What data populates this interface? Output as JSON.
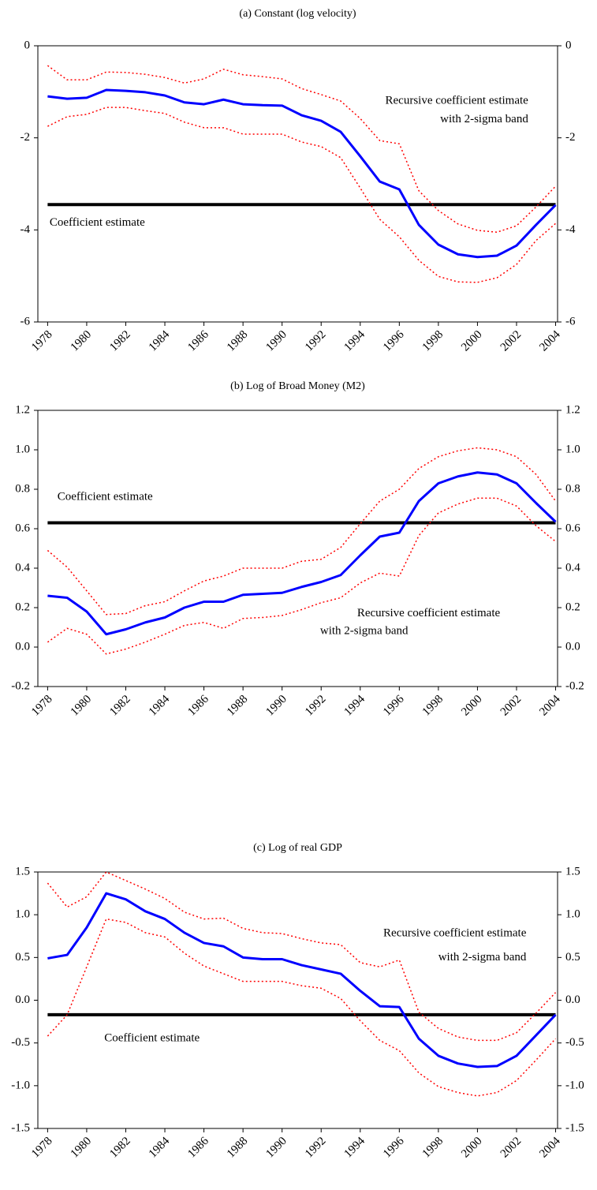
{
  "chart_data": [
    {
      "type": "line",
      "title": "(a) Constant (log velocity)",
      "x": [
        1978,
        1979,
        1980,
        1981,
        1982,
        1983,
        1984,
        1985,
        1986,
        1987,
        1988,
        1989,
        1990,
        1991,
        1992,
        1993,
        1994,
        1995,
        1996,
        1997,
        1998,
        1999,
        2000,
        2001,
        2002,
        2003,
        2004
      ],
      "xlim": [
        1977.5,
        2004.1
      ],
      "xticks": [
        1978,
        1980,
        1982,
        1984,
        1986,
        1988,
        1990,
        1992,
        1994,
        1996,
        1998,
        2000,
        2002,
        2004
      ],
      "ylim": [
        -6,
        0
      ],
      "yticks": [
        -6,
        -4,
        -2,
        0
      ],
      "y2lim": [
        -6,
        0
      ],
      "y2ticks": [
        -6,
        -4,
        -2,
        0
      ],
      "series": [
        {
          "color": "#ff0000",
          "style": "dotted",
          "values": [
            -0.43,
            -0.74,
            -0.74,
            -0.57,
            -0.58,
            -0.62,
            -0.69,
            -0.81,
            -0.72,
            -0.51,
            -0.63,
            -0.67,
            -0.72,
            -0.93,
            -1.06,
            -1.2,
            -1.58,
            -2.06,
            -2.13,
            -3.15,
            -3.58,
            -3.87,
            -4.01,
            -4.05,
            -3.91,
            -3.5,
            -3.05
          ]
        },
        {
          "color": "#0000ff",
          "style": "solid",
          "values": [
            -1.1,
            -1.15,
            -1.13,
            -0.96,
            -0.98,
            -1.01,
            -1.08,
            -1.23,
            -1.27,
            -1.17,
            -1.27,
            -1.29,
            -1.3,
            -1.51,
            -1.63,
            -1.87,
            -2.4,
            -2.95,
            -3.12,
            -3.89,
            -4.32,
            -4.53,
            -4.59,
            -4.56,
            -4.34,
            -3.89,
            -3.46
          ]
        },
        {
          "color": "#ff0000",
          "style": "dotted",
          "values": [
            -1.75,
            -1.54,
            -1.49,
            -1.34,
            -1.34,
            -1.41,
            -1.47,
            -1.66,
            -1.78,
            -1.78,
            -1.92,
            -1.92,
            -1.92,
            -2.09,
            -2.19,
            -2.43,
            -3.09,
            -3.77,
            -4.15,
            -4.66,
            -5.01,
            -5.13,
            -5.14,
            -5.04,
            -4.75,
            -4.23,
            -3.86
          ]
        }
      ],
      "reference_line": {
        "value": -3.45,
        "color": "#000000",
        "label": "Coefficient estimate"
      },
      "band_label": [
        "Recursive coefficient estimate",
        "with 2-sigma band"
      ]
    },
    {
      "type": "line",
      "title": "(b) Log of Broad Money (M2)",
      "x": [
        1978,
        1979,
        1980,
        1981,
        1982,
        1983,
        1984,
        1985,
        1986,
        1987,
        1988,
        1989,
        1990,
        1991,
        1992,
        1993,
        1994,
        1995,
        1996,
        1997,
        1998,
        1999,
        2000,
        2001,
        2002,
        2003,
        2004
      ],
      "xlim": [
        1977.5,
        2004.1
      ],
      "xticks": [
        1978,
        1980,
        1982,
        1984,
        1986,
        1988,
        1990,
        1992,
        1994,
        1996,
        1998,
        2000,
        2002,
        2004
      ],
      "ylim": [
        -0.2,
        1.2
      ],
      "yticks": [
        -0.2,
        {
          "value": 0,
          "label": "0.0"
        },
        0.2,
        0.4,
        0.6,
        0.8,
        {
          "value": 1,
          "label": "1.0"
        },
        1.2
      ],
      "y2lim": [
        -0.2,
        1.2
      ],
      "y2ticks": [
        -0.2,
        {
          "value": 0,
          "label": "0.0"
        },
        0.2,
        0.4,
        0.6,
        0.8,
        {
          "value": 1,
          "label": "1.0"
        },
        1.2
      ],
      "series": [
        {
          "color": "#ff0000",
          "style": "dotted",
          "values": [
            0.49,
            0.405,
            0.285,
            0.165,
            0.17,
            0.21,
            0.23,
            0.285,
            0.335,
            0.36,
            0.4,
            0.4,
            0.4,
            0.435,
            0.445,
            0.505,
            0.625,
            0.74,
            0.8,
            0.905,
            0.965,
            0.995,
            1.01,
            1.0,
            0.965,
            0.875,
            0.74
          ]
        },
        {
          "color": "#0000ff",
          "style": "solid",
          "values": [
            0.26,
            0.25,
            0.18,
            0.065,
            0.09,
            0.125,
            0.15,
            0.2,
            0.23,
            0.23,
            0.265,
            0.27,
            0.275,
            0.305,
            0.33,
            0.365,
            0.465,
            0.56,
            0.58,
            0.74,
            0.83,
            0.865,
            0.885,
            0.875,
            0.83,
            0.73,
            0.635
          ]
        },
        {
          "color": "#ff0000",
          "style": "dotted",
          "values": [
            0.025,
            0.095,
            0.065,
            -0.035,
            -0.01,
            0.025,
            0.065,
            0.11,
            0.125,
            0.095,
            0.145,
            0.15,
            0.16,
            0.19,
            0.225,
            0.25,
            0.325,
            0.375,
            0.36,
            0.565,
            0.68,
            0.725,
            0.755,
            0.755,
            0.715,
            0.615,
            0.535
          ]
        }
      ],
      "reference_line": {
        "value": 0.63,
        "color": "#000000",
        "label": "Coefficient estimate"
      },
      "band_label": [
        "Recursive coefficient estimate",
        "with 2-sigma band"
      ]
    },
    {
      "type": "line",
      "title": "(c) Log of real GDP",
      "x": [
        1978,
        1979,
        1980,
        1981,
        1982,
        1983,
        1984,
        1985,
        1986,
        1987,
        1988,
        1989,
        1990,
        1991,
        1992,
        1993,
        1994,
        1995,
        1996,
        1997,
        1998,
        1999,
        2000,
        2001,
        2002,
        2003,
        2004
      ],
      "xlim": [
        1977.5,
        2004.1
      ],
      "xticks": [
        1978,
        1980,
        1982,
        1984,
        1986,
        1988,
        1990,
        1992,
        1994,
        1996,
        1998,
        2000,
        2002,
        2004
      ],
      "ylim": [
        -1.5,
        1.5
      ],
      "yticks": [
        -1.5,
        {
          "value": -1,
          "label": "-1.0"
        },
        -0.5,
        {
          "value": 0,
          "label": "0.0"
        },
        0.5,
        {
          "value": 1,
          "label": "1.0"
        },
        1.5
      ],
      "y2lim": [
        -1.5,
        1.5
      ],
      "y2ticks": [
        -1.5,
        {
          "value": -1,
          "label": "-1.0"
        },
        -0.5,
        {
          "value": 0,
          "label": "0.0"
        },
        0.5,
        {
          "value": 1,
          "label": "1.0"
        },
        1.5
      ],
      "series": [
        {
          "color": "#ff0000",
          "style": "dotted",
          "values": [
            1.37,
            1.09,
            1.21,
            1.5,
            1.4,
            1.3,
            1.19,
            1.03,
            0.95,
            0.96,
            0.84,
            0.79,
            0.78,
            0.72,
            0.67,
            0.65,
            0.44,
            0.39,
            0.47,
            -0.14,
            -0.33,
            -0.43,
            -0.47,
            -0.47,
            -0.38,
            -0.15,
            0.09
          ]
        },
        {
          "color": "#0000ff",
          "style": "solid",
          "values": [
            0.49,
            0.53,
            0.85,
            1.25,
            1.18,
            1.04,
            0.95,
            0.79,
            0.67,
            0.63,
            0.5,
            0.48,
            0.48,
            0.41,
            0.36,
            0.31,
            0.11,
            -0.07,
            -0.08,
            -0.45,
            -0.65,
            -0.74,
            -0.78,
            -0.77,
            -0.65,
            -0.41,
            -0.17
          ]
        },
        {
          "color": "#ff0000",
          "style": "dotted",
          "values": [
            -0.42,
            -0.17,
            0.39,
            0.95,
            0.91,
            0.79,
            0.74,
            0.55,
            0.4,
            0.31,
            0.22,
            0.22,
            0.22,
            0.17,
            0.14,
            0.02,
            -0.24,
            -0.47,
            -0.59,
            -0.85,
            -1.01,
            -1.08,
            -1.12,
            -1.08,
            -0.94,
            -0.7,
            -0.45
          ]
        }
      ],
      "reference_line": {
        "value": -0.17,
        "color": "#000000",
        "label": "Coefficient estimate"
      },
      "band_label": [
        "Recursive coefficient estimate",
        "with 2-sigma band"
      ]
    }
  ]
}
